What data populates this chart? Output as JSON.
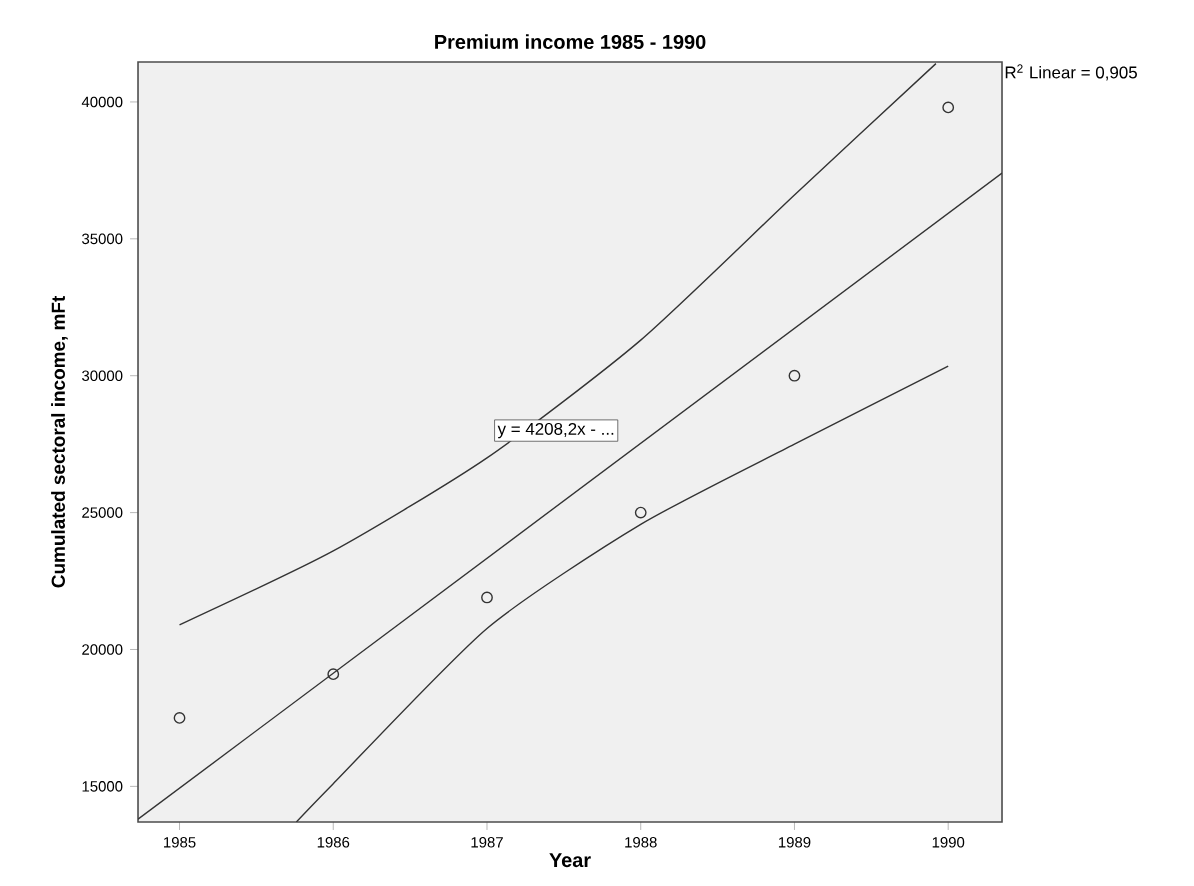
{
  "chart_data": {
    "type": "scatter",
    "title": "Premium income 1985 - 1990",
    "xlabel": "Year",
    "ylabel": "Cumulated sectoral income, mFt",
    "xlim": [
      1984.73,
      1990.35
    ],
    "ylim": [
      13700,
      41460
    ],
    "xticks": [
      {
        "value": 1985,
        "label": "1985"
      },
      {
        "value": 1986,
        "label": "1986"
      },
      {
        "value": 1987,
        "label": "1987"
      },
      {
        "value": 1988,
        "label": "1988"
      },
      {
        "value": 1989,
        "label": "1989"
      },
      {
        "value": 1990,
        "label": "1990"
      }
    ],
    "yticks": [
      15000,
      20000,
      25000,
      30000,
      35000,
      40000
    ],
    "grid": false,
    "series": [
      {
        "marker": "circle",
        "color": "#333333",
        "x": [
          1985,
          1986,
          1987,
          1988,
          1989,
          1990
        ],
        "values": [
          17500,
          19100,
          21900,
          25000,
          30000,
          39800
        ]
      },
      {
        "type": "line",
        "color": "#333333",
        "x": [
          1984.73,
          1990.35
        ],
        "values": [
          13800,
          37400
        ]
      },
      {
        "type": "line",
        "color": "#333333",
        "x": [
          1985,
          1986,
          1987,
          1988,
          1989,
          1989.92
        ],
        "values": [
          20900,
          23600,
          27000,
          31300,
          36600,
          41400
        ]
      },
      {
        "type": "line",
        "color": "#333333",
        "x": [
          1985.76,
          1986,
          1987,
          1988,
          1989,
          1990
        ],
        "values": [
          13700,
          15100,
          20770,
          24570,
          27500,
          30350
        ]
      }
    ],
    "annotations": [
      "y = 4208,2x -  ...",
      "R$^{2}$ Linear = 0,905"
    ]
  }
}
